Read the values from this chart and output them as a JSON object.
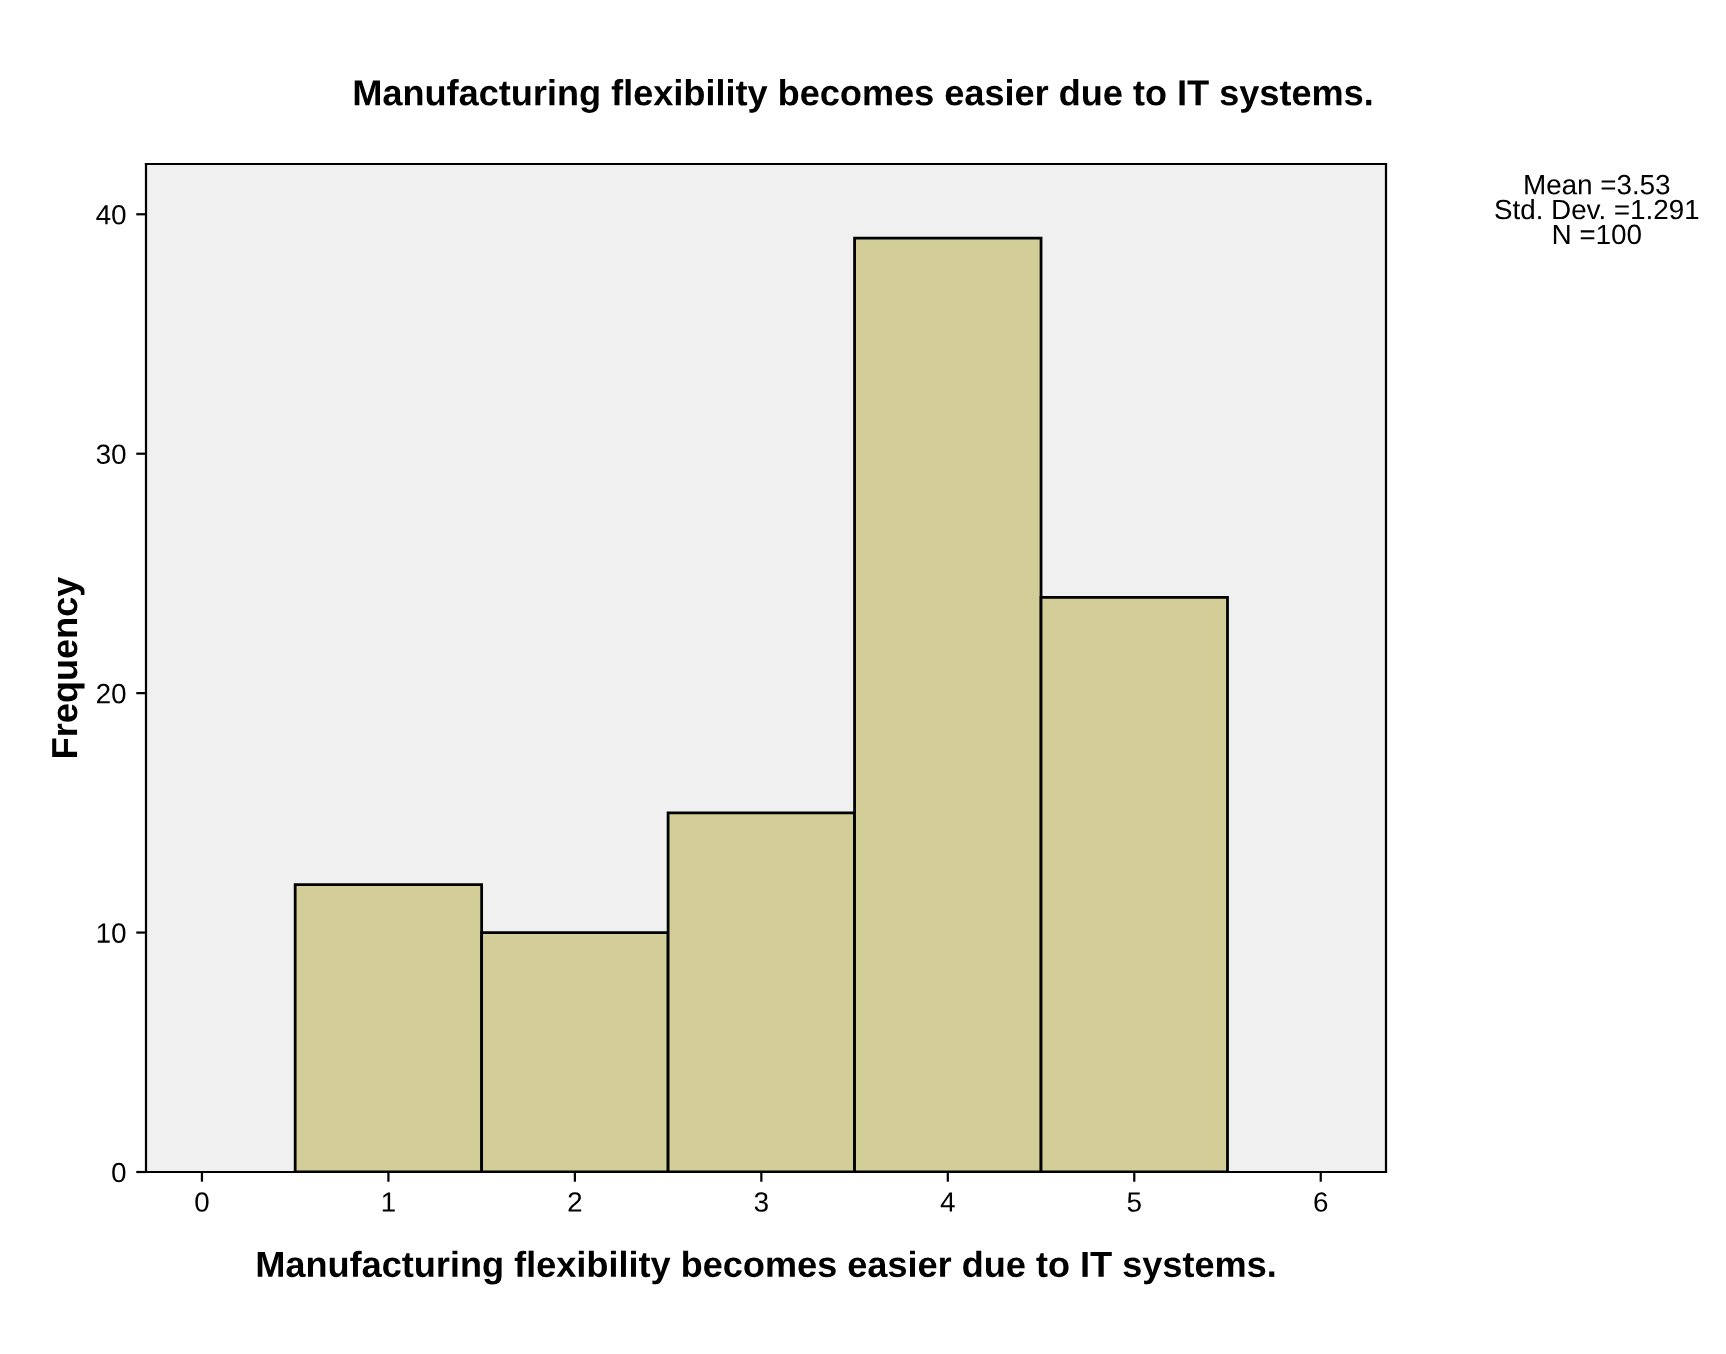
{
  "chart_data": {
    "type": "histogram",
    "title": "Manufacturing flexibility becomes easier due to IT systems.",
    "xlabel": "Manufacturing flexibility becomes easier due to IT systems.",
    "ylabel": "Frequency",
    "bins": [
      0.5,
      1.5,
      2.5,
      3.5,
      4.5,
      5.5
    ],
    "values": [
      12,
      10,
      15,
      39,
      24
    ],
    "color": "#d3ce97",
    "xlim": [
      -0.3,
      6.35
    ],
    "xticks": [
      0,
      1,
      2,
      3,
      4,
      5,
      6
    ],
    "ylim": [
      0,
      42.1
    ],
    "yticks": [
      0,
      10,
      20,
      30,
      40
    ],
    "grid": false,
    "legend": false,
    "annotations": [
      "Mean =3.53",
      "Std. Dev. =1.291",
      "N =100"
    ]
  }
}
